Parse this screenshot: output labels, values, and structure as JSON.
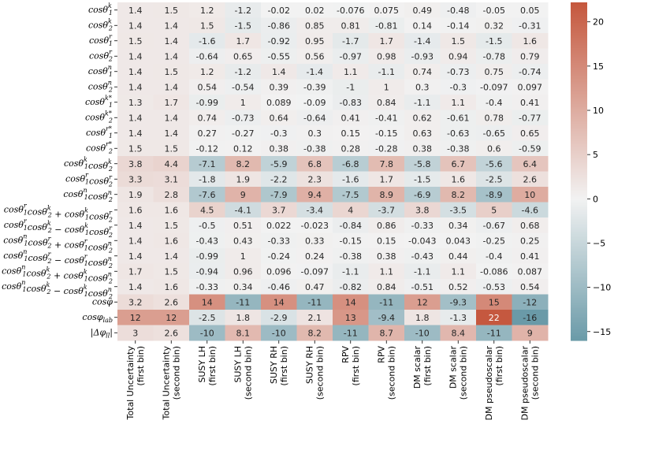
{
  "chart_data": {
    "type": "heatmap",
    "title": "",
    "columns": [
      [
        "Total Uncertainty",
        "(first bin)"
      ],
      [
        "Total Uncertainty",
        "(second bin)"
      ],
      [
        "SUSY LH",
        "(first bin)"
      ],
      [
        "SUSY LH",
        "(second bin)"
      ],
      [
        "SUSY RH",
        "(first bin)"
      ],
      [
        "SUSY RH",
        "(second bin)"
      ],
      [
        "RPV",
        "(first bin)"
      ],
      [
        "RPV",
        "(second bin)"
      ],
      [
        "DM scalar",
        "(first bin)"
      ],
      [
        "DM scalar",
        "(second bin)"
      ],
      [
        "DM pseudoscalar",
        "(first bin)"
      ],
      [
        "DM pseudoscalar",
        "(second bin)"
      ]
    ],
    "rows": [
      "cosθ₁ᵏ",
      "cosθ₂ᵏ",
      "cosθ₁ʳ",
      "cosθ₂ʳ",
      "cosθ₁ⁿ",
      "cosθ₂ⁿ",
      "cosθ₁ᵏ*",
      "cosθ₂ᵏ*",
      "cosθ₁ʳ*",
      "cosθ₂ʳ*",
      "cosθ₁ᵏcosθ₂ᵏ",
      "cosθ₁ʳcosθ₂ʳ",
      "cosθ₁ⁿcosθ₂ⁿ",
      "cosθ₁ʳcosθ₂ᵏ + cosθ₁ᵏcosθ₂ʳ",
      "cosθ₁ʳcosθ₂ᵏ − cosθ₁ᵏcosθ₂ʳ",
      "cosθ₁ⁿcosθ₂ʳ + cosθ₁ʳcosθ₂ⁿ",
      "cosθ₁ⁿcosθ₂ʳ − cosθ₁ʳcosθ₂ⁿ",
      "cosθ₁ⁿcosθ₂ᵏ + cosθ₁ᵏcosθ₂ⁿ",
      "cosθ₁ⁿcosθ₂ᵏ − cosθ₁ᵏcosθ₂ⁿ",
      "cosφ",
      "cosφlab",
      "|Δφll|"
    ],
    "values": [
      [
        1.4,
        1.5,
        1.2,
        -1.2,
        -0.02,
        0.02,
        -0.076,
        0.075,
        0.49,
        -0.48,
        -0.05,
        0.05
      ],
      [
        1.4,
        1.4,
        1.5,
        -1.5,
        -0.86,
        0.85,
        0.81,
        -0.81,
        0.14,
        -0.14,
        0.32,
        -0.31
      ],
      [
        1.5,
        1.4,
        -1.6,
        1.7,
        -0.92,
        0.95,
        -1.7,
        1.7,
        -1.4,
        1.5,
        -1.5,
        1.6
      ],
      [
        1.4,
        1.4,
        -0.64,
        0.65,
        -0.55,
        0.56,
        -0.97,
        0.98,
        -0.93,
        0.94,
        -0.78,
        0.79
      ],
      [
        1.4,
        1.5,
        1.2,
        -1.2,
        1.4,
        -1.4,
        1.1,
        -1.1,
        0.74,
        -0.73,
        0.75,
        -0.74
      ],
      [
        1.4,
        1.4,
        0.54,
        -0.54,
        0.39,
        -0.39,
        -1,
        1,
        0.3,
        -0.3,
        -0.097,
        0.097
      ],
      [
        1.3,
        1.7,
        -0.99,
        1,
        0.089,
        -0.09,
        -0.83,
        0.84,
        -1.1,
        1.1,
        -0.4,
        0.41
      ],
      [
        1.4,
        1.4,
        0.74,
        -0.73,
        0.64,
        -0.64,
        0.41,
        -0.41,
        0.62,
        -0.61,
        0.78,
        -0.77
      ],
      [
        1.4,
        1.4,
        0.27,
        -0.27,
        -0.3,
        0.3,
        0.15,
        -0.15,
        0.63,
        -0.63,
        -0.65,
        0.65
      ],
      [
        1.5,
        1.5,
        -0.12,
        0.12,
        0.38,
        -0.38,
        0.28,
        -0.28,
        0.38,
        -0.38,
        0.6,
        -0.59
      ],
      [
        3.8,
        4.4,
        -7.1,
        8.2,
        -5.9,
        6.8,
        -6.8,
        7.8,
        -5.8,
        6.7,
        -5.6,
        6.4
      ],
      [
        3.3,
        3.1,
        -1.8,
        1.9,
        -2.2,
        2.3,
        -1.6,
        1.7,
        -1.5,
        1.6,
        -2.5,
        2.6
      ],
      [
        1.9,
        2.8,
        -7.6,
        9,
        -7.9,
        9.4,
        -7.5,
        8.9,
        -6.9,
        8.2,
        -8.9,
        10
      ],
      [
        1.6,
        1.6,
        4.5,
        -4.1,
        3.7,
        -3.4,
        4,
        -3.7,
        3.8,
        -3.5,
        5,
        -4.6
      ],
      [
        1.4,
        1.5,
        -0.5,
        0.51,
        0.022,
        -0.023,
        -0.84,
        0.86,
        -0.33,
        0.34,
        -0.67,
        0.68
      ],
      [
        1.4,
        1.6,
        -0.43,
        0.43,
        -0.33,
        0.33,
        -0.15,
        0.15,
        -0.043,
        0.043,
        -0.25,
        0.25
      ],
      [
        1.4,
        1.4,
        -0.99,
        1,
        -0.24,
        0.24,
        -0.38,
        0.38,
        -0.43,
        0.44,
        -0.4,
        0.41
      ],
      [
        1.7,
        1.5,
        -0.94,
        0.96,
        0.096,
        -0.097,
        -1.1,
        1.1,
        -1.1,
        1.1,
        -0.086,
        0.087
      ],
      [
        1.4,
        1.6,
        -0.33,
        0.34,
        -0.46,
        0.47,
        -0.82,
        0.84,
        -0.51,
        0.52,
        -0.53,
        0.54
      ],
      [
        3.2,
        2.6,
        14,
        -11,
        14,
        -11,
        14,
        -11,
        12,
        -9.3,
        15,
        -12
      ],
      [
        12,
        12,
        -2.5,
        1.8,
        -2.9,
        2.1,
        13,
        -9.4,
        1.8,
        -1.3,
        22,
        -16
      ],
      [
        3,
        2.6,
        -10,
        8.1,
        -10,
        8.2,
        -11,
        8.7,
        -10,
        8.4,
        -11,
        9
      ]
    ],
    "colorbar": {
      "range": [
        -16,
        22.2
      ],
      "ticks": [
        -15,
        -10,
        -5,
        0,
        5,
        10,
        15,
        20
      ],
      "tick_labels": [
        "−15",
        "−10",
        "−5",
        "0",
        "5",
        "10",
        "15",
        "20"
      ],
      "neg_color": "#6a9aa8",
      "mid_color": "#f2f2f2",
      "pos_color": "#c5573d"
    }
  }
}
